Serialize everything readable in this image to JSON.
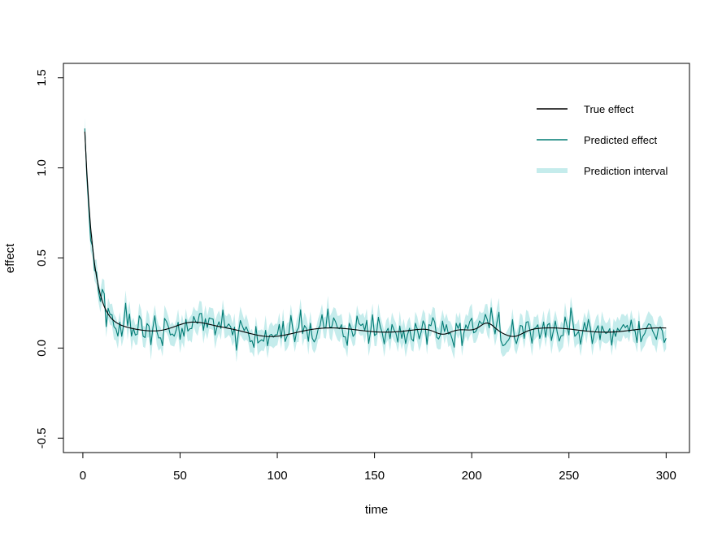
{
  "chart_data": {
    "type": "line",
    "title": "",
    "xlabel": "time",
    "ylabel": "effect",
    "xlim": [
      -10,
      312
    ],
    "ylim": [
      -0.58,
      1.58
    ],
    "x_ticks": [
      0,
      50,
      100,
      150,
      200,
      250,
      300
    ],
    "x_tick_labels": [
      "0",
      "50",
      "100",
      "150",
      "200",
      "250",
      "300"
    ],
    "y_ticks": [
      -0.5,
      0.0,
      0.5,
      1.0,
      1.5
    ],
    "y_tick_labels": [
      "-0.5",
      "0.0",
      "0.5",
      "1.0",
      "1.5"
    ],
    "grid": false,
    "legend_position": "top-right",
    "n_points": 300,
    "series": [
      {
        "name": "True effect",
        "color": "#000000",
        "description": "exponential decay from ~1.2 to ~0.1 baseline with slow undulation",
        "start_value": 1.2,
        "baseline": 0.1
      },
      {
        "name": "Predicted effect",
        "color": "#007b74",
        "description": "noisy estimate following true effect"
      },
      {
        "name": "Prediction interval",
        "color": "#c5ecec",
        "description": "band roughly +/-0.06 around predicted effect"
      }
    ]
  },
  "legend": {
    "items": [
      {
        "label": "True effect",
        "color": "#000000",
        "kind": "line"
      },
      {
        "label": "Predicted effect",
        "color": "#007b74",
        "kind": "line"
      },
      {
        "label": "Prediction interval",
        "color": "#c5ecec",
        "kind": "band"
      }
    ]
  }
}
